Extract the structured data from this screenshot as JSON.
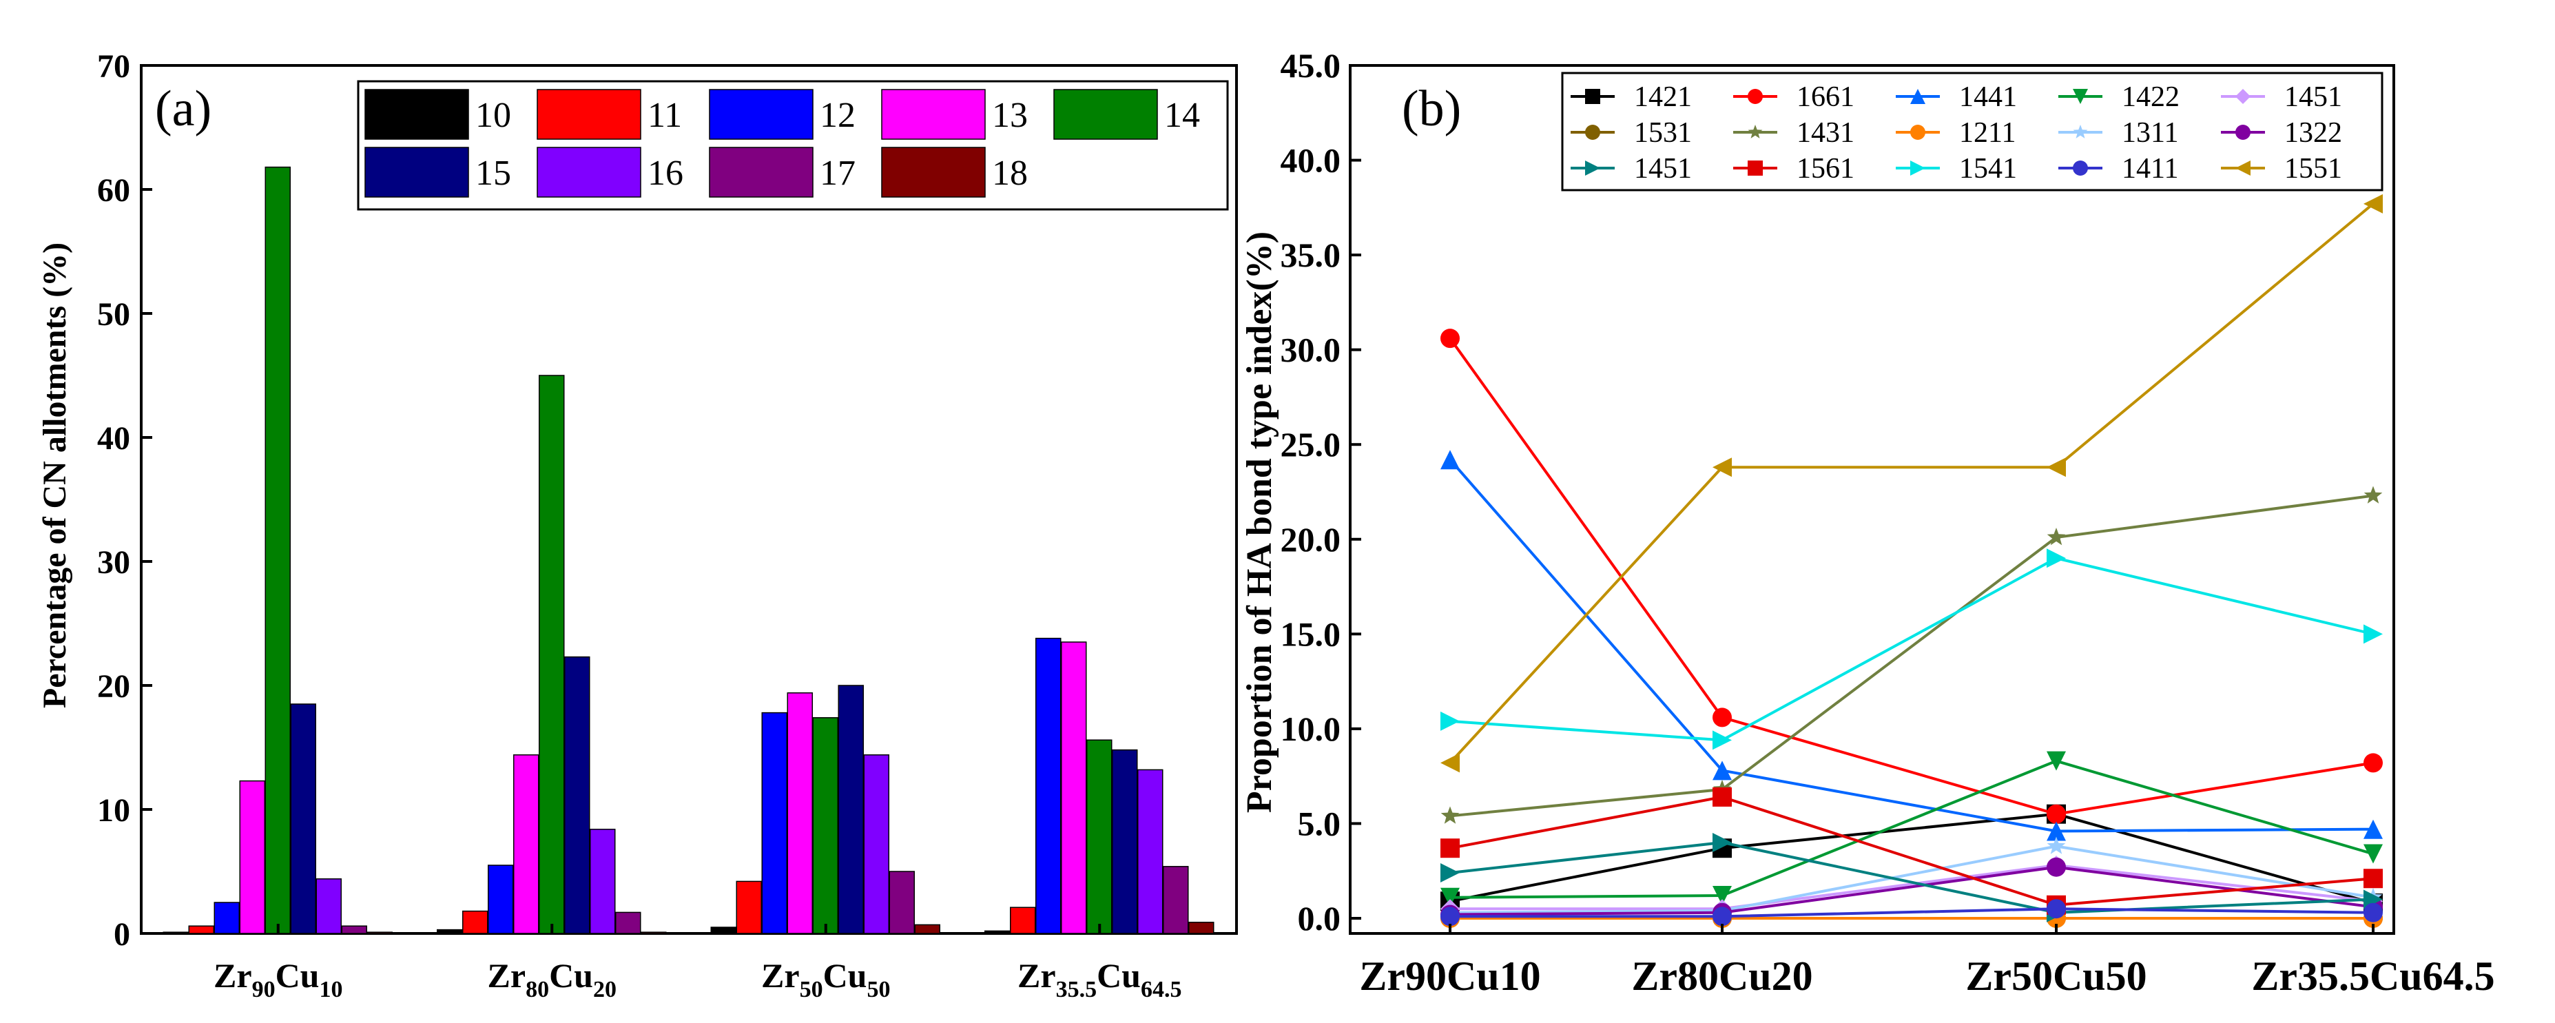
{
  "chart_data": [
    {
      "type": "bar",
      "panel_label": "(a)",
      "ylabel": "Percentage of CN allotments (%)",
      "xlabel": "",
      "ylim": [
        0,
        70
      ],
      "yticks": [
        0,
        10,
        20,
        30,
        40,
        50,
        60,
        70
      ],
      "categories": [
        {
          "base": "Zr",
          "sub1": "90",
          "mid": "Cu",
          "sub2": "10"
        },
        {
          "base": "Zr",
          "sub1": "80",
          "mid": "Cu",
          "sub2": "20"
        },
        {
          "base": "Zr",
          "sub1": "50",
          "mid": "Cu",
          "sub2": "50"
        },
        {
          "base": "Zr",
          "sub1": "35.5",
          "mid": "Cu",
          "sub2": "64.5"
        }
      ],
      "legend_position": "top-right",
      "series": [
        {
          "name": "10",
          "color": "#000000",
          "values": [
            0.1,
            0.3,
            0.5,
            0.2
          ]
        },
        {
          "name": "11",
          "color": "#ff0000",
          "values": [
            0.6,
            1.8,
            4.2,
            2.1
          ]
        },
        {
          "name": "12",
          "color": "#0000ff",
          "values": [
            2.5,
            5.5,
            17.8,
            23.8
          ]
        },
        {
          "name": "13",
          "color": "#ff00ff",
          "values": [
            12.3,
            14.4,
            19.4,
            23.5
          ]
        },
        {
          "name": "14",
          "color": "#008000",
          "values": [
            61.8,
            45.0,
            17.4,
            15.6
          ]
        },
        {
          "name": "15",
          "color": "#000080",
          "values": [
            18.5,
            22.3,
            20.0,
            14.8
          ]
        },
        {
          "name": "16",
          "color": "#8000ff",
          "values": [
            4.4,
            8.4,
            14.4,
            13.2
          ]
        },
        {
          "name": "17",
          "color": "#800080",
          "values": [
            0.6,
            1.7,
            5.0,
            5.4
          ]
        },
        {
          "name": "18",
          "color": "#800000",
          "values": [
            0.1,
            0.1,
            0.7,
            0.9
          ]
        }
      ]
    },
    {
      "type": "line",
      "panel_label": "(b)",
      "ylabel": "Proportion of HA bond type index(%)",
      "xlabel": "",
      "ylim": [
        0,
        45
      ],
      "yticks": [
        "0.0",
        "5.0",
        "10.0",
        "15.0",
        "20.0",
        "25.0",
        "30.0",
        "35.0",
        "40.0",
        "45.0"
      ],
      "categories": [
        "Zr90Cu10",
        "Zr80Cu20",
        "Zr50Cu50",
        "Zr35.5Cu64.5"
      ],
      "legend_position": "top",
      "series": [
        {
          "name": "1421",
          "color": "#000000",
          "marker": "square",
          "values": [
            0.9,
            3.7,
            5.5,
            0.8
          ]
        },
        {
          "name": "1661",
          "color": "#ff0000",
          "marker": "circle",
          "values": [
            30.6,
            10.6,
            5.5,
            8.2
          ]
        },
        {
          "name": "1441",
          "color": "#0066ff",
          "marker": "triangle-up",
          "values": [
            24.2,
            7.8,
            4.6,
            4.7
          ]
        },
        {
          "name": "1422",
          "color": "#009933",
          "marker": "triangle-down",
          "values": [
            1.1,
            1.2,
            8.3,
            3.4
          ]
        },
        {
          "name": "1451",
          "color": "#cc99ff",
          "marker": "diamond",
          "values": [
            0.5,
            0.5,
            2.8,
            0.9
          ]
        },
        {
          "name": "1531",
          "color": "#806000",
          "marker": "circle",
          "values": [
            0.0,
            0.0,
            0.0,
            0.0
          ]
        },
        {
          "name": "1431",
          "color": "#708040",
          "marker": "star",
          "values": [
            5.4,
            6.8,
            20.1,
            22.3
          ]
        },
        {
          "name": "1211",
          "color": "#ff8000",
          "marker": "circle",
          "values": [
            0.0,
            0.0,
            0.0,
            0.0
          ]
        },
        {
          "name": "1311",
          "color": "#99ccff",
          "marker": "star",
          "values": [
            0.3,
            0.4,
            3.8,
            1.1
          ]
        },
        {
          "name": "1322",
          "color": "#8000a0",
          "marker": "circle",
          "values": [
            0.2,
            0.3,
            2.7,
            0.6
          ]
        },
        {
          "name": "1451",
          "color": "#008080",
          "marker": "triangle-right",
          "values": [
            2.4,
            4.0,
            0.3,
            1.0
          ]
        },
        {
          "name": "1561",
          "color": "#e00000",
          "marker": "square",
          "values": [
            3.7,
            6.4,
            0.7,
            2.1
          ]
        },
        {
          "name": "1541",
          "color": "#00e5e5",
          "marker": "triangle-right",
          "values": [
            10.4,
            9.4,
            19.0,
            15.0
          ]
        },
        {
          "name": "1411",
          "color": "#3333cc",
          "marker": "circle",
          "values": [
            0.1,
            0.1,
            0.5,
            0.3
          ]
        },
        {
          "name": "1551",
          "color": "#c09000",
          "marker": "triangle-left",
          "values": [
            8.2,
            23.8,
            23.8,
            37.7
          ]
        }
      ]
    }
  ]
}
